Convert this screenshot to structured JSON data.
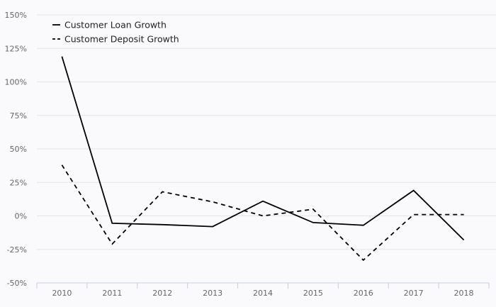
{
  "chart_data": {
    "type": "line",
    "title": "",
    "xlabel": "",
    "ylabel": "",
    "x": [
      "2010",
      "2011",
      "2012",
      "2013",
      "2014",
      "2015",
      "2016",
      "2017",
      "2018"
    ],
    "ylim": [
      -50,
      150
    ],
    "yticks": [
      -50,
      -25,
      0,
      25,
      50,
      75,
      100,
      125,
      150
    ],
    "ytick_labels": [
      "-50%",
      "-25%",
      "0%",
      "25%",
      "50%",
      "75%",
      "100%",
      "125%",
      "150%"
    ],
    "grid": true,
    "legend_position": "top-left",
    "series": [
      {
        "name": "Customer Loan Growth",
        "style": "solid",
        "color": "#000000",
        "values": [
          119,
          -5.5,
          -6.5,
          -8,
          11,
          -5,
          -7,
          19,
          -18
        ]
      },
      {
        "name": "Customer Deposit Growth",
        "style": "dashed",
        "color": "#000000",
        "values": [
          38,
          -21,
          18,
          10.5,
          0,
          5,
          -33,
          1,
          1
        ]
      }
    ]
  }
}
